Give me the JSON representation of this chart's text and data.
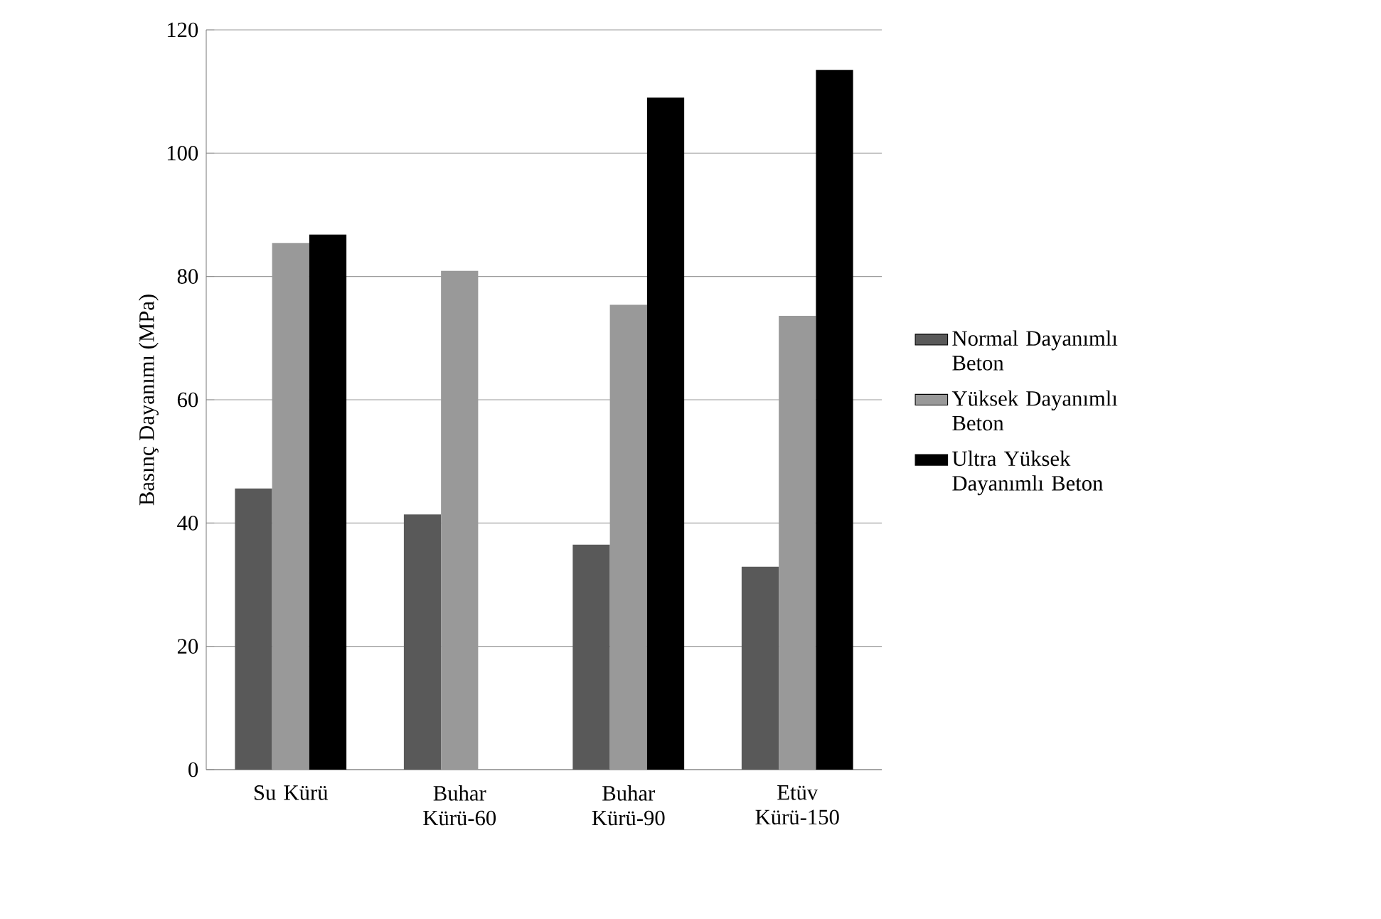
{
  "chart_data": {
    "type": "bar",
    "ylabel": "Basınç  Dayanımı  (MPa)",
    "categories": [
      "Su Kürü",
      "Buhar Kürü-60",
      "Buhar Kürü-90",
      "Etüv Kürü-150"
    ],
    "series": [
      {
        "name": "Normal Dayanımlı Beton",
        "color": "#595959",
        "values": [
          45.6,
          41.4,
          36.5,
          32.9
        ]
      },
      {
        "name": "Yüksek Dayanımlı Beton",
        "color": "#999999",
        "values": [
          85.4,
          80.9,
          75.4,
          73.6
        ]
      },
      {
        "name": "Ultra Yüksek Dayanımlı Beton",
        "color": "#000000",
        "values": [
          86.8,
          null,
          109,
          113.5
        ]
      }
    ],
    "ylim": [
      0,
      120
    ],
    "yticks": [
      0,
      20,
      40,
      60,
      80,
      100,
      120
    ],
    "grid": "y",
    "legend": "right"
  }
}
